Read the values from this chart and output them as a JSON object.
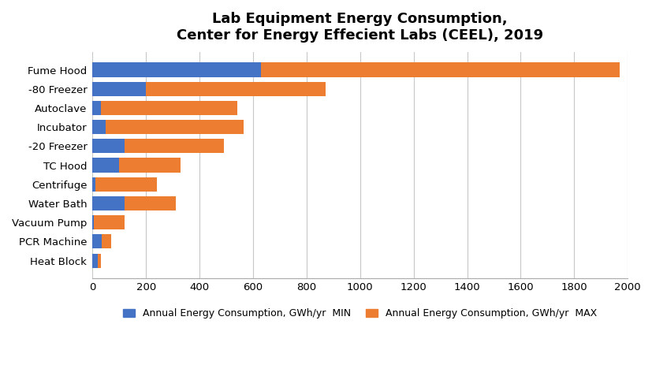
{
  "title": "Lab Equipment Energy Consumption,\nCenter for Energy Effecient Labs (CEEL), 2019",
  "categories": [
    "Fume Hood",
    "-80 Freezer",
    "Autoclave",
    "Incubator",
    "-20 Freezer",
    "TC Hood",
    "Centrifuge",
    "Water Bath",
    "Vacuum Pump",
    "PCR Machine",
    "Heat Block"
  ],
  "min_values": [
    630,
    200,
    30,
    50,
    120,
    100,
    10,
    120,
    5,
    35,
    20
  ],
  "max_values": [
    1970,
    870,
    540,
    565,
    490,
    330,
    240,
    310,
    120,
    70,
    30
  ],
  "color_min": "#4472C4",
  "color_max": "#ED7D31",
  "legend_min": "Annual Energy Consumption, GWh/yr  MIN",
  "legend_max": "Annual Energy Consumption, GWh/yr  MAX",
  "xlim": [
    0,
    2000
  ],
  "xticks": [
    0,
    200,
    400,
    600,
    800,
    1000,
    1200,
    1400,
    1600,
    1800,
    2000
  ],
  "background_color": "#ffffff",
  "grid_color": "#c8c8c8",
  "title_fontsize": 13,
  "label_fontsize": 9.5,
  "bar_height": 0.75
}
